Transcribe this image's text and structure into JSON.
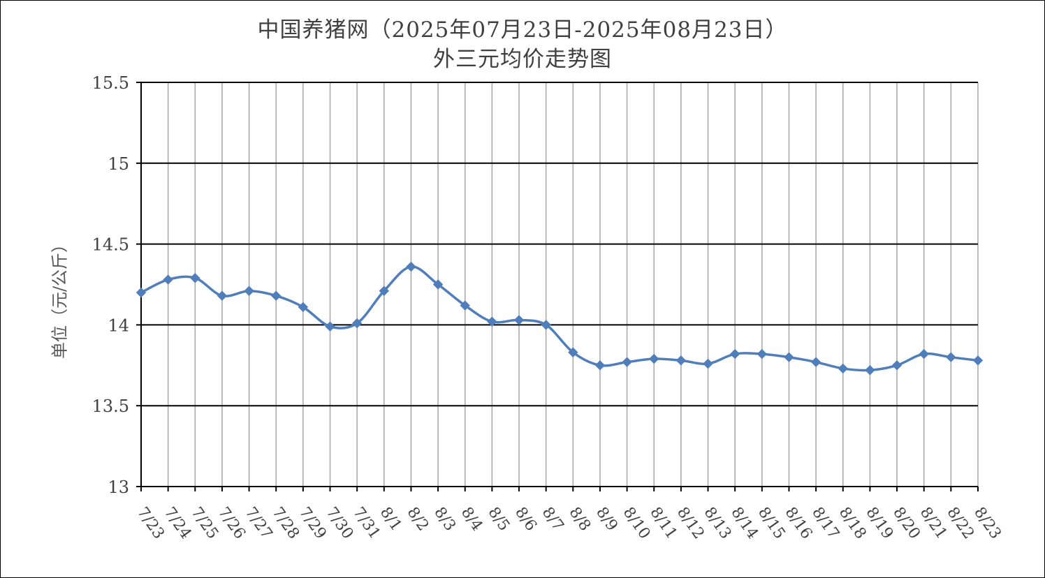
{
  "chart_data": {
    "type": "line",
    "title": "中国养猪网（2025年07月23日-2025年08月23日）",
    "subtitle": "外三元均价走势图",
    "ylabel": "单位（元/公斤）",
    "xlabel": "",
    "ylim": [
      13,
      15.5
    ],
    "yticks": [
      "13",
      "13.5",
      "14",
      "14.5",
      "15",
      "15.5"
    ],
    "grid": {
      "horizontal": true,
      "vertical": true
    },
    "legend": "none",
    "categories": [
      "7/23",
      "7/24",
      "7/25",
      "7/26",
      "7/27",
      "7/28",
      "7/29",
      "7/30",
      "7/31",
      "8/1",
      "8/2",
      "8/3",
      "8/4",
      "8/5",
      "8/6",
      "8/7",
      "8/8",
      "8/9",
      "8/10",
      "8/11",
      "8/12",
      "8/13",
      "8/14",
      "8/15",
      "8/16",
      "8/17",
      "8/18",
      "8/19",
      "8/20",
      "8/21",
      "8/22",
      "8/23"
    ],
    "series": [
      {
        "values": [
          14.2,
          14.28,
          14.29,
          14.18,
          14.21,
          14.18,
          14.11,
          13.99,
          14.01,
          14.21,
          14.36,
          14.25,
          14.12,
          14.02,
          14.03,
          14.0,
          13.83,
          13.75,
          13.77,
          13.79,
          13.78,
          13.76,
          13.82,
          13.82,
          13.8,
          13.77,
          13.73,
          13.72,
          13.75,
          13.82,
          13.8,
          13.78
        ],
        "color": "#4F7EBB",
        "marker": "diamond"
      }
    ]
  }
}
